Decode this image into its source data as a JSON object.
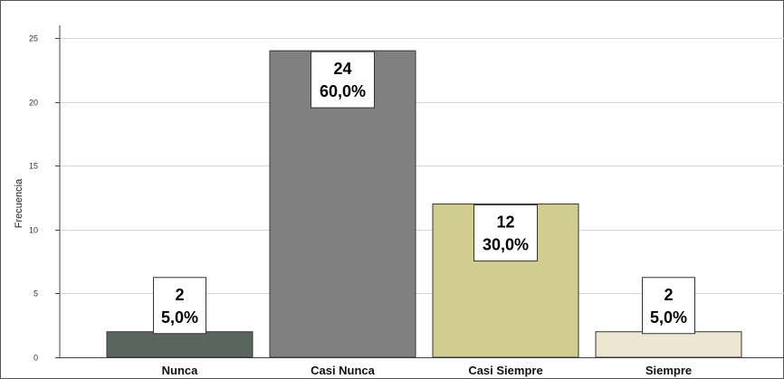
{
  "chart_data": {
    "type": "bar",
    "categories": [
      "Nunca",
      "Casi Nunca",
      "Casi Siempre",
      "Siempre"
    ],
    "values": [
      2,
      24,
      12,
      2
    ],
    "data_labels": [
      {
        "count": "2",
        "percent": "5,0%"
      },
      {
        "count": "24",
        "percent": "60,0%"
      },
      {
        "count": "12",
        "percent": "30,0%"
      },
      {
        "count": "2",
        "percent": "5,0%"
      }
    ],
    "bar_colors": [
      "#5a6560",
      "#808080",
      "#d1cc8f",
      "#ede6d1"
    ],
    "ylabel": "Frecuencia",
    "xlabel": "",
    "title": "",
    "ylim": [
      0,
      25
    ],
    "yticks": [
      0,
      5,
      10,
      15,
      20,
      25
    ],
    "grid": true,
    "legend": "none"
  }
}
